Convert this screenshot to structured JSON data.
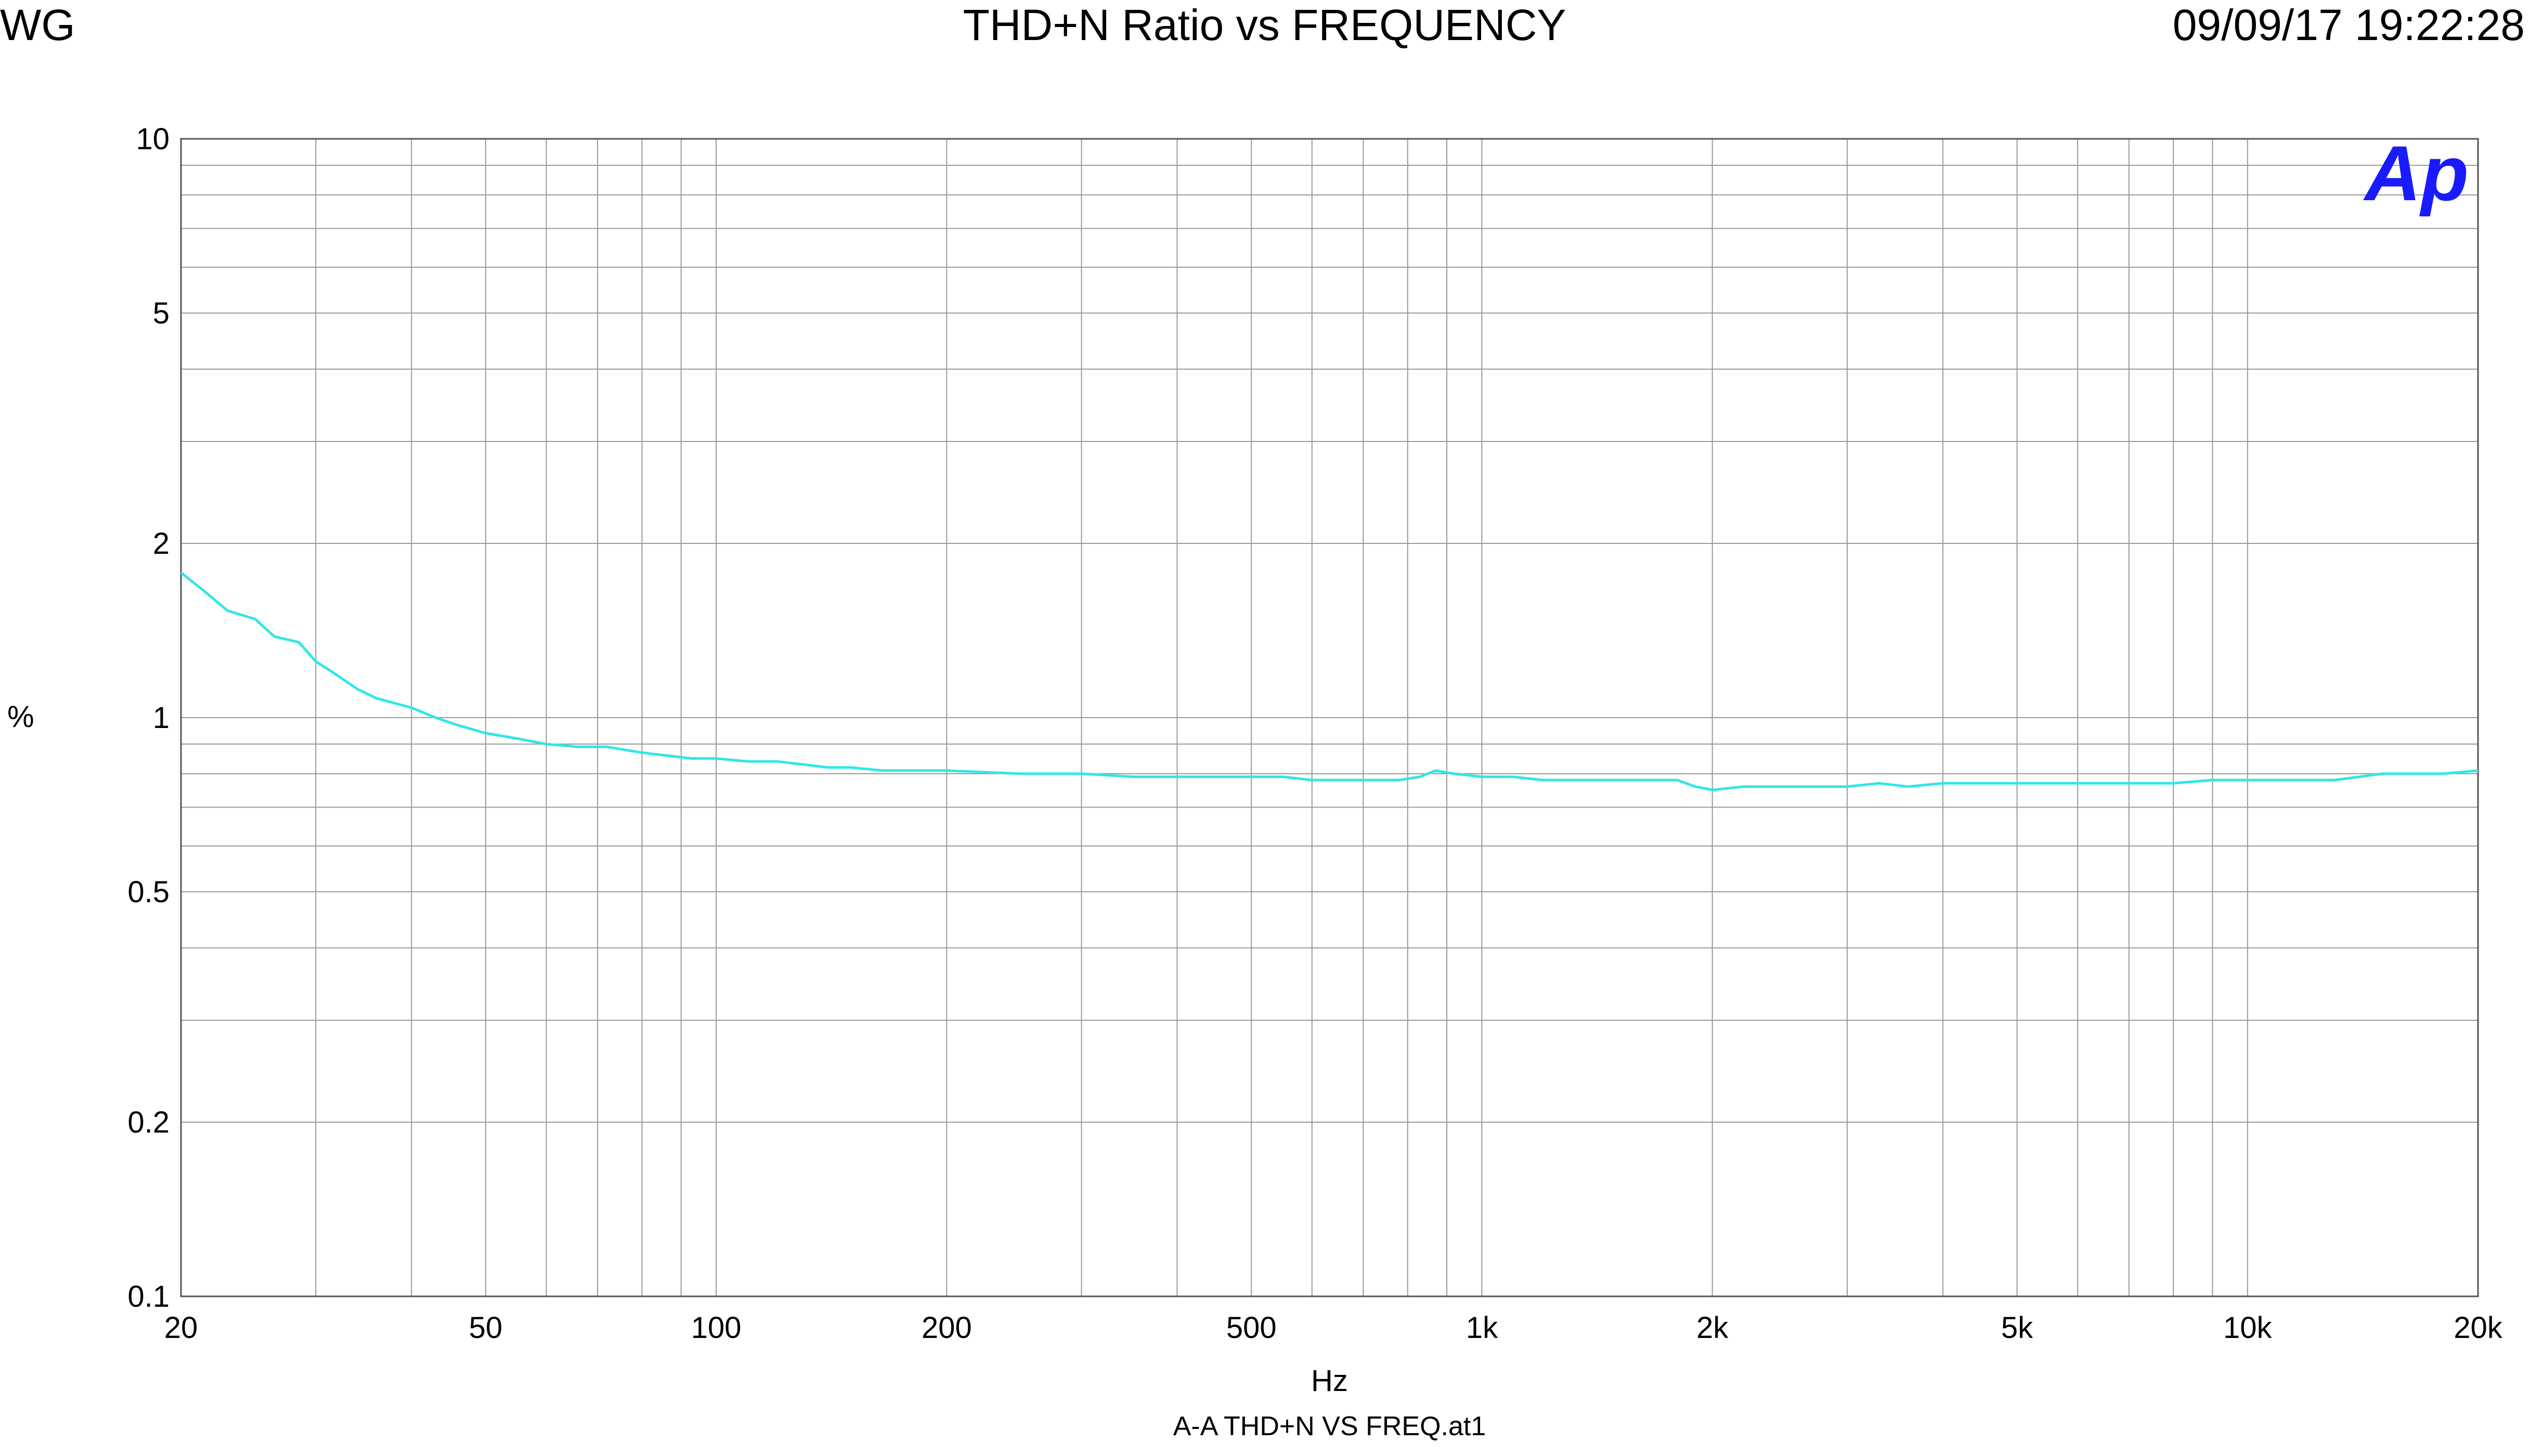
{
  "header": {
    "left_label": "WG",
    "title": "THD+N Ratio vs FREQUENCY",
    "timestamp": "09/09/17 19:22:28"
  },
  "logo": {
    "text": "Ap",
    "color": "#1a1aff"
  },
  "footer": {
    "filename": "A-A THD+N VS FREQ.at1"
  },
  "chart_data": {
    "type": "line",
    "title": "THD+N Ratio vs FREQUENCY",
    "xlabel": "Hz",
    "ylabel": "%",
    "x_scale": "log",
    "y_scale": "log",
    "xlim": [
      20,
      20000
    ],
    "ylim": [
      0.1,
      10
    ],
    "grid": true,
    "line_color": "#33e6e6",
    "x_ticks": [
      {
        "value": 20,
        "label": "20"
      },
      {
        "value": 50,
        "label": "50"
      },
      {
        "value": 100,
        "label": "100"
      },
      {
        "value": 200,
        "label": "200"
      },
      {
        "value": 500,
        "label": "500"
      },
      {
        "value": 1000,
        "label": "1k"
      },
      {
        "value": 2000,
        "label": "2k"
      },
      {
        "value": 5000,
        "label": "5k"
      },
      {
        "value": 10000,
        "label": "10k"
      },
      {
        "value": 20000,
        "label": "20k"
      }
    ],
    "y_ticks": [
      {
        "value": 0.1,
        "label": "0.1"
      },
      {
        "value": 0.2,
        "label": "0.2"
      },
      {
        "value": 0.5,
        "label": "0.5"
      },
      {
        "value": 1,
        "label": "1"
      },
      {
        "value": 2,
        "label": "2"
      },
      {
        "value": 5,
        "label": "5"
      },
      {
        "value": 10,
        "label": "10"
      }
    ],
    "series": [
      {
        "x": [
          20,
          21.5,
          23,
          25,
          26.5,
          28.5,
          30,
          31.5,
          34,
          36,
          40,
          43,
          46,
          50,
          55,
          60,
          66,
          72,
          80,
          86,
          93,
          100,
          110,
          120,
          130,
          140,
          150,
          165,
          180,
          200,
          250,
          300,
          350,
          400,
          500,
          550,
          600,
          700,
          780,
          830,
          870,
          920,
          1000,
          1100,
          1200,
          1500,
          1800,
          1900,
          2000,
          2200,
          2500,
          2800,
          3000,
          3300,
          3600,
          4000,
          5000,
          6000,
          7000,
          8000,
          9000,
          10000,
          11000,
          13000,
          15000,
          18000,
          20000
        ],
        "y": [
          1.78,
          1.65,
          1.53,
          1.48,
          1.38,
          1.35,
          1.25,
          1.2,
          1.12,
          1.08,
          1.04,
          1.0,
          0.97,
          0.94,
          0.92,
          0.9,
          0.89,
          0.89,
          0.87,
          0.86,
          0.85,
          0.85,
          0.84,
          0.84,
          0.83,
          0.82,
          0.82,
          0.81,
          0.81,
          0.81,
          0.8,
          0.8,
          0.79,
          0.79,
          0.79,
          0.79,
          0.78,
          0.78,
          0.78,
          0.79,
          0.81,
          0.8,
          0.79,
          0.79,
          0.78,
          0.78,
          0.78,
          0.76,
          0.75,
          0.76,
          0.76,
          0.76,
          0.76,
          0.77,
          0.76,
          0.77,
          0.77,
          0.77,
          0.77,
          0.77,
          0.78,
          0.78,
          0.78,
          0.78,
          0.8,
          0.8,
          0.81
        ]
      }
    ]
  }
}
